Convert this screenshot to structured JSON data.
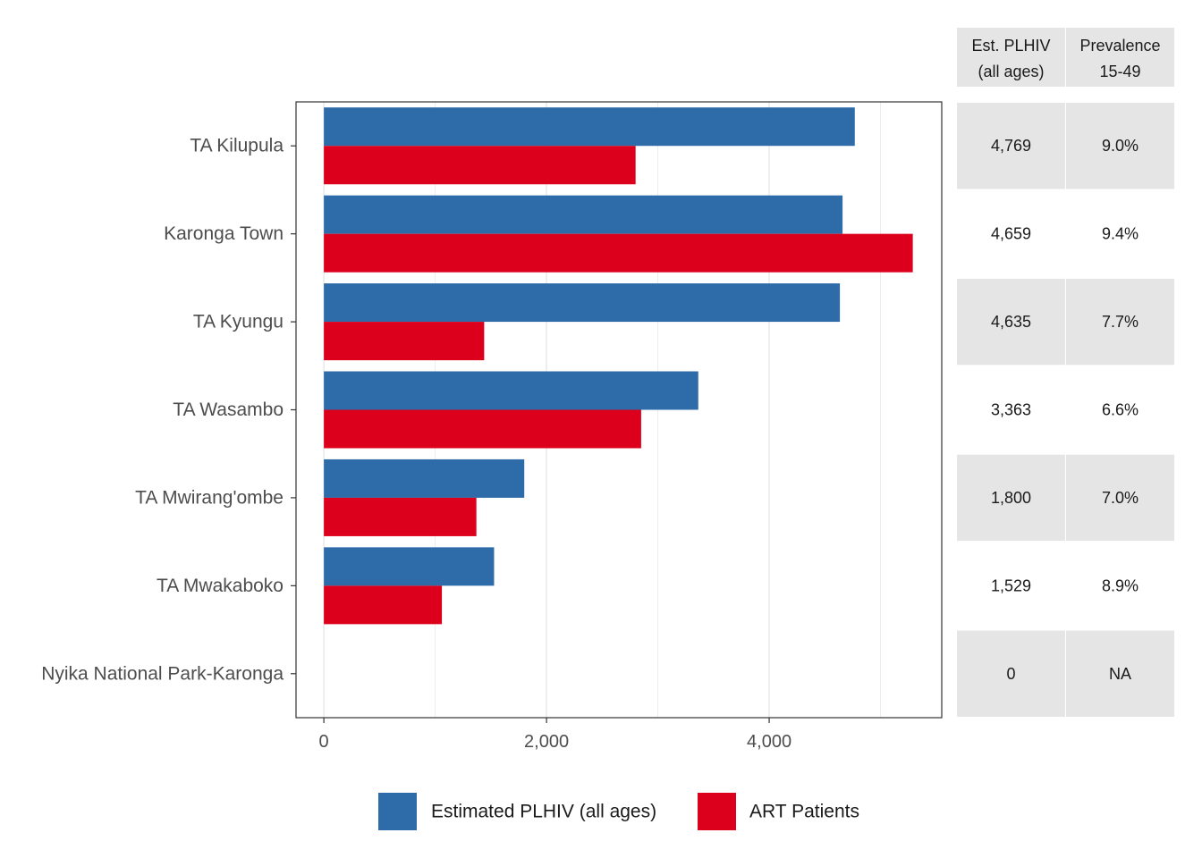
{
  "chart_data": {
    "type": "bar",
    "orientation": "horizontal",
    "categories": [
      "TA Kilupula",
      "Karonga Town",
      "TA Kyungu",
      "TA Wasambo",
      "TA Mwirang'ombe",
      "TA Mwakaboko",
      "Nyika National Park-Karonga"
    ],
    "series": [
      {
        "name": "Estimated PLHIV (all ages)",
        "color": "#2d6ba9",
        "values": [
          4769,
          4659,
          4635,
          3363,
          1800,
          1529,
          0
        ]
      },
      {
        "name": "ART Patients",
        "color": "#dc001c",
        "values": [
          2800,
          5290,
          1440,
          2850,
          1370,
          1060,
          0
        ]
      }
    ],
    "xlim": [
      -250,
      5550
    ],
    "x_ticks": [
      0,
      2000,
      4000
    ],
    "x_tick_labels": [
      "0",
      "2,000",
      "4,000"
    ],
    "grid": true,
    "legend_position": "bottom",
    "title": "",
    "xlabel": "",
    "ylabel": ""
  },
  "table": {
    "headers": [
      [
        "Est. PLHIV",
        "(all ages)"
      ],
      [
        "Prevalence",
        "15-49"
      ]
    ],
    "rows": [
      [
        "4,769",
        "9.0%"
      ],
      [
        "4,659",
        "9.4%"
      ],
      [
        "4,635",
        "7.7%"
      ],
      [
        "3,363",
        "6.6%"
      ],
      [
        "1,800",
        "7.0%"
      ],
      [
        "1,529",
        "8.9%"
      ],
      [
        "0",
        "NA"
      ]
    ],
    "shaded_color": "#e5e5e5"
  }
}
